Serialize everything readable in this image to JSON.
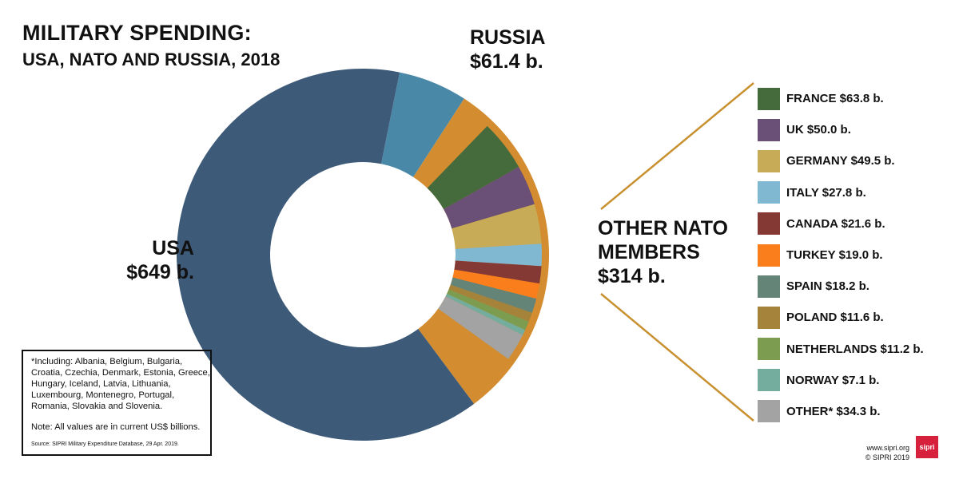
{
  "chart_data": {
    "type": "donut",
    "title": "MILITARY SPENDING:",
    "subtitle": "USA, NATO AND RUSSIA, 2018",
    "unit": "US$ billions",
    "series": [
      {
        "name": "USA",
        "value": 649,
        "label_line1": "USA",
        "label_line2": "$649 b.",
        "color": "#3d5a78"
      },
      {
        "name": "RUSSIA",
        "value": 61.4,
        "label_line1": "RUSSIA",
        "label_line2": "$61.4 b.",
        "color": "#4a88a8"
      },
      {
        "name": "OTHER NATO MEMBERS",
        "value": 314,
        "label_line1": "OTHER NATO",
        "label_line2": "MEMBERS",
        "label_line3": "$314 b.",
        "color": "#d38c2f"
      }
    ],
    "nato_breakdown": [
      {
        "name": "FRANCE",
        "value": 63.8,
        "label": "FRANCE $63.8 b.",
        "color": "#456b3c"
      },
      {
        "name": "UK",
        "value": 50.0,
        "label": "UK $50.0 b.",
        "color": "#6a5077"
      },
      {
        "name": "GERMANY",
        "value": 49.5,
        "label": "GERMANY $49.5 b.",
        "color": "#c8ab57"
      },
      {
        "name": "ITALY",
        "value": 27.8,
        "label": "ITALY $27.8 b.",
        "color": "#80b8d2"
      },
      {
        "name": "CANADA",
        "value": 21.6,
        "label": "CANADA $21.6 b.",
        "color": "#843934"
      },
      {
        "name": "TURKEY",
        "value": 19.0,
        "label": "TURKEY $19.0 b.",
        "color": "#fb7e1d"
      },
      {
        "name": "SPAIN",
        "value": 18.2,
        "label": "SPAIN $18.2 b.",
        "color": "#658478"
      },
      {
        "name": "POLAND",
        "value": 11.6,
        "label": "POLAND $11.6 b.",
        "color": "#a6833a"
      },
      {
        "name": "NETHERLANDS",
        "value": 11.2,
        "label": "NETHERLANDS $11.2 b.",
        "color": "#7c9c4f"
      },
      {
        "name": "NORWAY",
        "value": 7.1,
        "label": "NORWAY $7.1 b.",
        "color": "#74ad9d"
      },
      {
        "name": "OTHER*",
        "value": 34.3,
        "label": "OTHER* $34.3 b.",
        "color": "#a3a3a3"
      }
    ]
  },
  "note": {
    "including": "*Including: Albania, Belgium, Bulgaria, Croatia, Czechia, Denmark, Estonia, Greece, Hungary, Iceland, Latvia, Lithuania, Luxembourg, Montenegro, Portugal, Romania, Slovakia and Slovenia.",
    "values": "Note: All values are in current US$ billions.",
    "source": "Source: SIPRI Military Expenditure Database, 29 Apr. 2019."
  },
  "footer": {
    "url": "www.sipri.org",
    "copyright": "© SIPRI 2019",
    "logo_text": "sipri"
  }
}
